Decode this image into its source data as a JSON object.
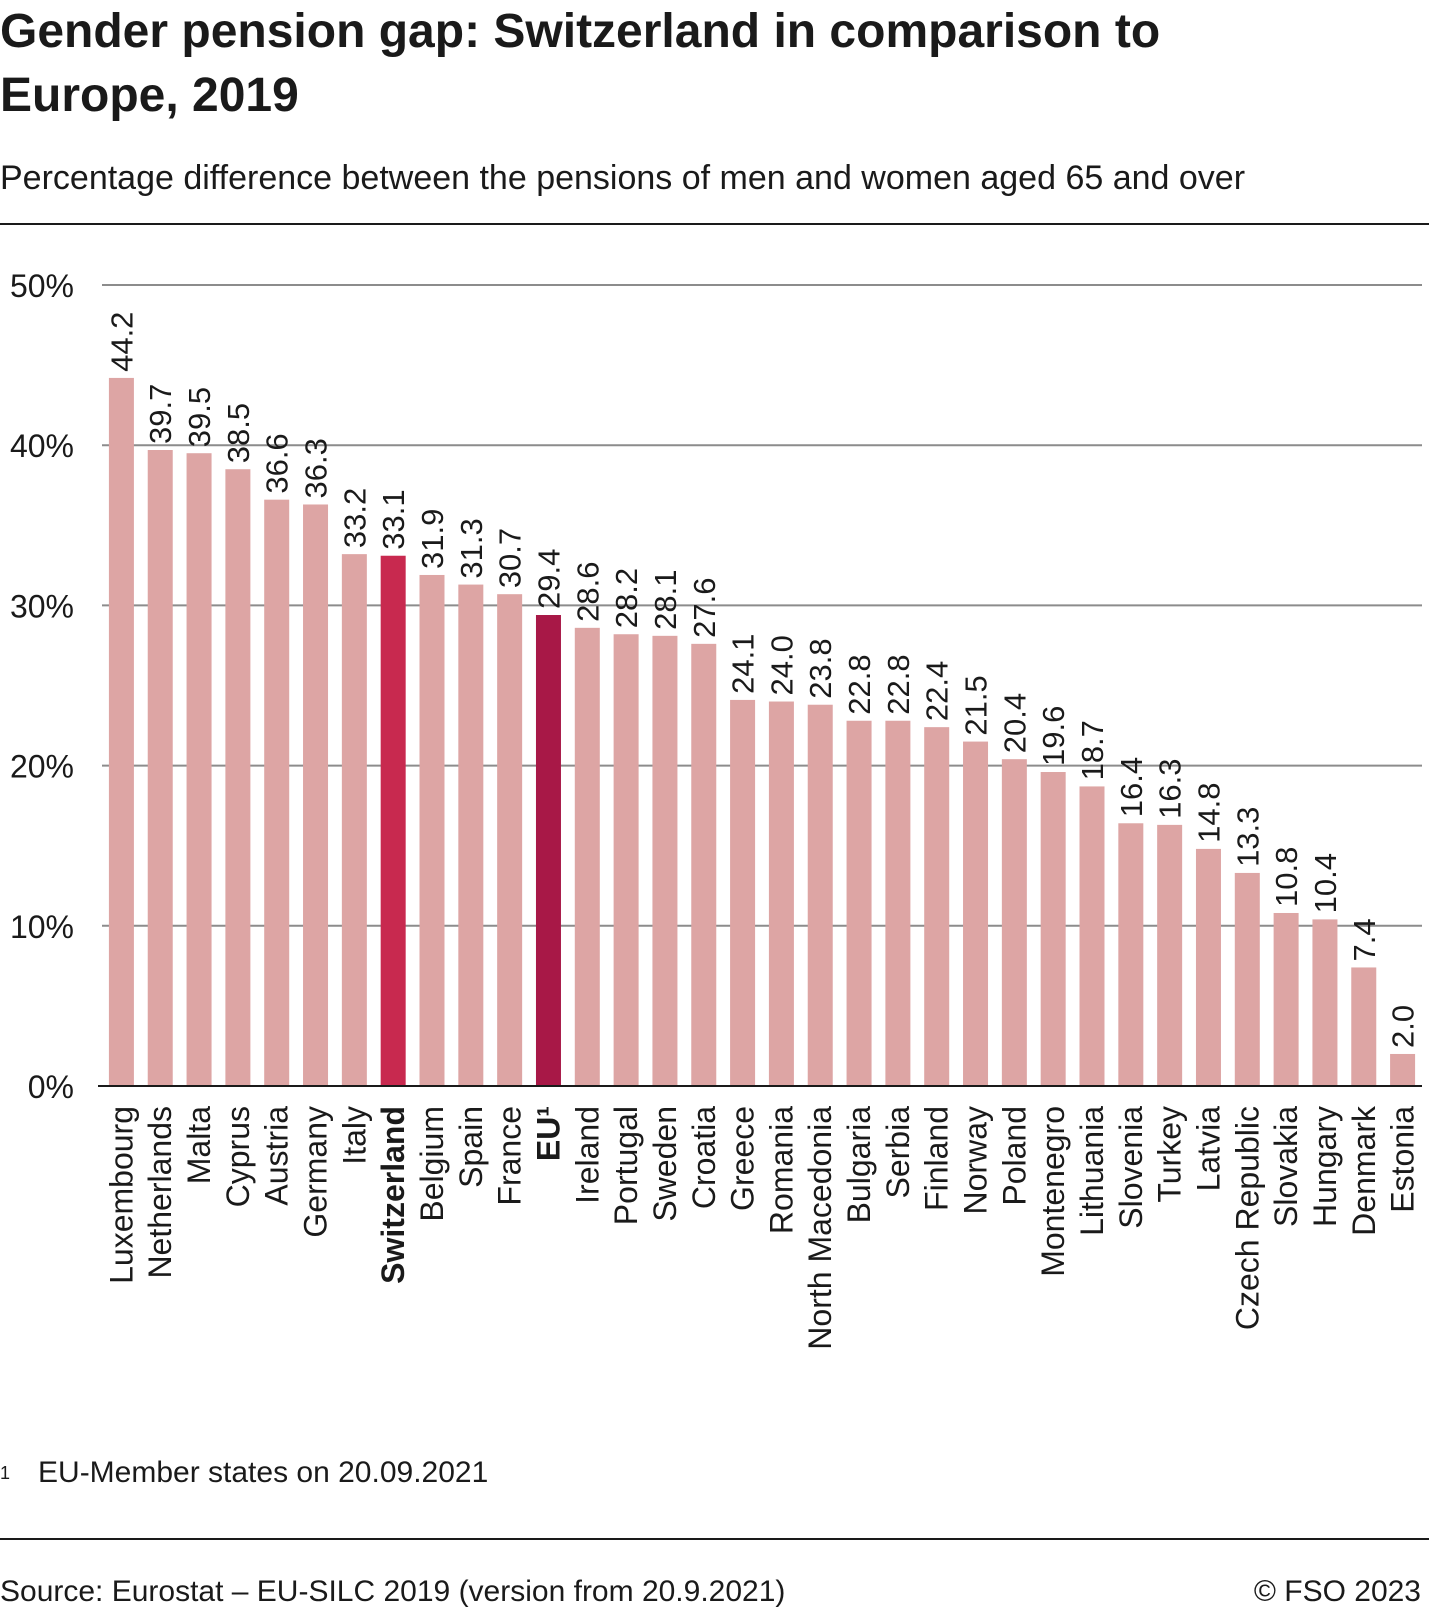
{
  "header": {
    "title": "Gender pension gap: Switzerland in comparison to Europe, 2019",
    "subtitle": "Percentage difference between the pensions of men and women aged 65 and over"
  },
  "chart_data": {
    "type": "bar",
    "title": "Gender pension gap: Switzerland in comparison to Europe, 2019",
    "subtitle": "Percentage difference between the pensions of men and women aged 65 and over",
    "xlabel": "",
    "ylabel": "",
    "ylim": [
      0,
      50
    ],
    "yticks": [
      "0%",
      "10%",
      "20%",
      "30%",
      "40%",
      "50%"
    ],
    "grid": true,
    "categories": [
      "Luxembourg",
      "Netherlands",
      "Malta",
      "Cyprus",
      "Austria",
      "Germany",
      "Italy",
      "Switzerland",
      "Belgium",
      "Spain",
      "France",
      "EU¹",
      "Ireland",
      "Portugal",
      "Sweden",
      "Croatia",
      "Greece",
      "Romania",
      "North Macedonia",
      "Bulgaria",
      "Serbia",
      "Finland",
      "Norway",
      "Poland",
      "Montenegro",
      "Lithuania",
      "Slovenia",
      "Turkey",
      "Latvia",
      "Czech Republic",
      "Slovakia",
      "Hungary",
      "Denmark",
      "Estonia"
    ],
    "values": [
      44.2,
      39.7,
      39.5,
      38.5,
      36.6,
      36.3,
      33.2,
      33.1,
      31.9,
      31.3,
      30.7,
      29.4,
      28.6,
      28.2,
      28.1,
      27.6,
      24.1,
      24.0,
      23.8,
      22.8,
      22.8,
      22.4,
      21.5,
      20.4,
      19.6,
      18.7,
      16.4,
      16.3,
      14.8,
      13.3,
      10.8,
      10.4,
      7.4,
      2.0
    ],
    "value_labels": [
      "44.2",
      "39.7",
      "39.5",
      "38.5",
      "36.6",
      "36.3",
      "33.2",
      "33.1",
      "31.9",
      "31.3",
      "30.7",
      "29.4",
      "28.6",
      "28.2",
      "28.1",
      "27.6",
      "24.1",
      "24.0",
      "23.8",
      "22.8",
      "22.8",
      "22.4",
      "21.5",
      "20.4",
      "19.6",
      "18.7",
      "16.4",
      "16.3",
      "14.8",
      "13.3",
      "10.8",
      "10.4",
      "7.4",
      "2.0"
    ],
    "highlight": [
      "Switzerland",
      "EU¹"
    ],
    "colors": {
      "bar": "#dda5a4",
      "switzerland": "#c8294f",
      "eu": "#a81847",
      "grid": "#8c8c8c",
      "axis": "#1a1a1a"
    }
  },
  "footnote": {
    "marker": "1",
    "text": "EU-Member states on 20.09.2021"
  },
  "footer": {
    "source": "Source: Eurostat – EU-SILC 2019 (version from 20.9.2021)",
    "copyright": "© FSO 2023"
  }
}
